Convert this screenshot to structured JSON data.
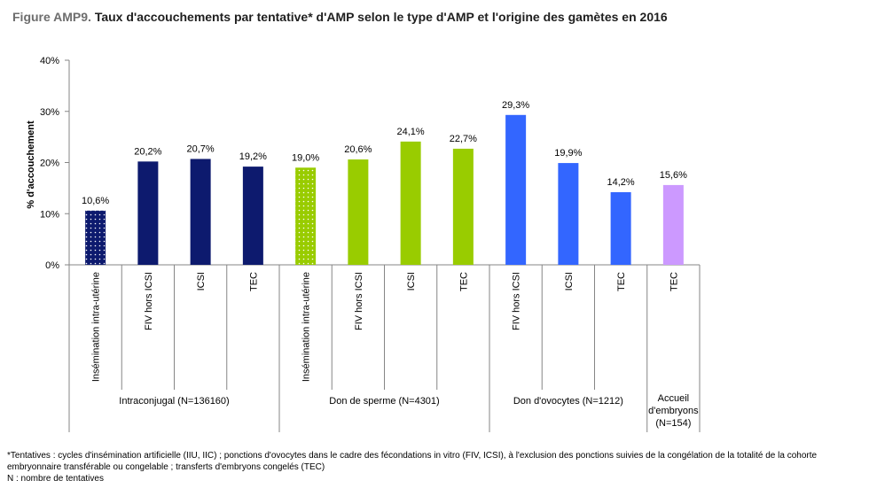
{
  "title": {
    "prefix": "Figure AMP9.",
    "text": "Taux d'accouchements par tentative* d'AMP selon le type d'AMP et l'origine des gamètes en 2016"
  },
  "colors": {
    "intra_inseminaton": "#0d1a6e",
    "intra": "#0d1a6e",
    "sperme": "#99cc00",
    "ovocytes": "#3366ff",
    "embryons": "#cc99ff",
    "axis": "#868686"
  },
  "chart_data": {
    "type": "bar",
    "ylabel": "% d'accouchement",
    "ylim": [
      0,
      40
    ],
    "yticks": [
      "0%",
      "10%",
      "20%",
      "30%",
      "40%"
    ],
    "categories": [
      "Insémination intra-utérine",
      "FIV hors ICSI",
      "ICSI",
      "TEC",
      "Insémination intra-utérine",
      "FIV hors ICSI",
      "ICSI",
      "TEC",
      "FIV hors ICSI",
      "ICSI",
      "TEC",
      "TEC"
    ],
    "values": [
      10.6,
      20.2,
      20.7,
      19.2,
      19.0,
      20.6,
      24.1,
      22.7,
      29.3,
      19.9,
      14.2,
      15.6
    ],
    "value_labels": [
      "10,6%",
      "20,2%",
      "20,7%",
      "19,2%",
      "19,0%",
      "20,6%",
      "24,1%",
      "22,7%",
      "29,3%",
      "19,9%",
      "14,2%",
      "15,6%"
    ],
    "bar_styles": [
      "dotted-dark",
      "intra",
      "intra",
      "intra",
      "dotted-light",
      "sperme",
      "sperme",
      "sperme",
      "ovocytes",
      "ovocytes",
      "ovocytes",
      "embryons"
    ],
    "groups": [
      {
        "label": [
          "Intraconjugal (N=136160)"
        ],
        "count": 4
      },
      {
        "label": [
          "Don de sperme (N=4301)"
        ],
        "count": 4
      },
      {
        "label": [
          "Don d'ovocytes (N=1212)"
        ],
        "count": 3
      },
      {
        "label": [
          "Accueil",
          "d'embryons",
          "(N=154)"
        ],
        "count": 1
      }
    ],
    "grid": false,
    "legend": "none"
  },
  "footnotes": [
    "*Tentatives : cycles d'insémination artificielle (IIU, IIC) ; ponctions d'ovocytes dans le cadre des fécondations in vitro (FIV, ICSI), à l'exclusion des ponctions suivies de la congélation de la totalité de la cohorte embryonnaire transférable ou congelable ; transferts d'embryons congelés (TEC)",
    "N : nombre de tentatives"
  ]
}
